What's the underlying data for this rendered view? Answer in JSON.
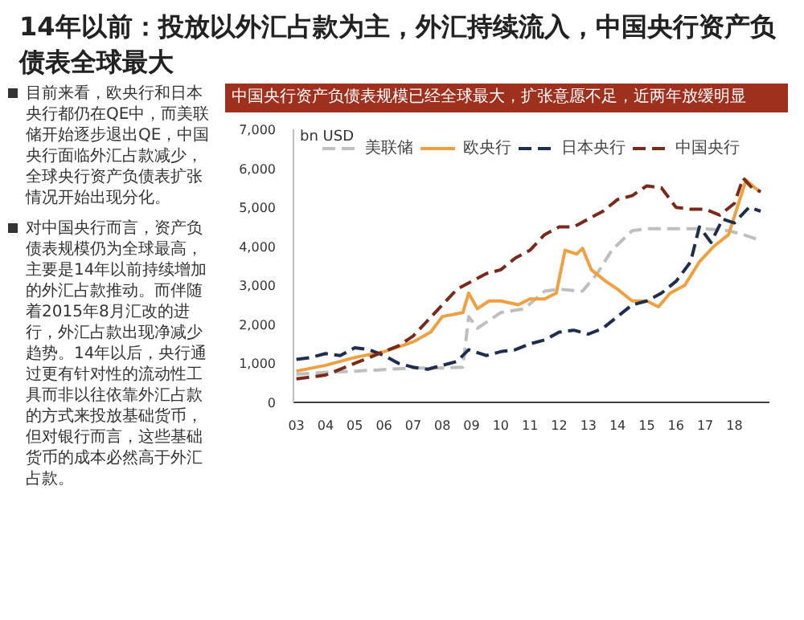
{
  "chart_data": {
    "type": "line",
    "title": "14年以前：投放以外汇占款为主，外汇持续流入，中国央行资产负债表全球最大",
    "subtitle": "中国央行资产负债表规模已经全球最大，扩张意愿不足，近两年放缓明显",
    "ylabel": "bn USD",
    "annotations": [
      "目前来看，欧央行和日本央行都仍在QE中，而美联储开始逐步退出QE，中国央行面临外汇占款减少，全球央行资产负债表扩张情况开始出现分化。",
      "对中国央行而言，资产负债表规模仍为全球最高，主要是14年以前持续增加的外汇占款推动。而伴随着2015年8月汇改的进行，外汇占款出现净减少趋势。14年以后，央行通过更有针对性的流动性工具而非以往依靠外汇占款的方式来投放基础货币，但对银行而言，这些基础货币的成本必然高于外汇占款。"
    ],
    "xlim": [
      2002.9,
      2019.2
    ],
    "xticks": [
      {
        "value": 2003,
        "label": "03"
      },
      {
        "value": 2004,
        "label": "04"
      },
      {
        "value": 2005,
        "label": "05"
      },
      {
        "value": 2006,
        "label": "06"
      },
      {
        "value": 2007,
        "label": "07"
      },
      {
        "value": 2008,
        "label": "08"
      },
      {
        "value": 2009,
        "label": "09"
      },
      {
        "value": 2010,
        "label": "10"
      },
      {
        "value": 2011,
        "label": "11"
      },
      {
        "value": 2012,
        "label": "12"
      },
      {
        "value": 2013,
        "label": "13"
      },
      {
        "value": 2014,
        "label": "14"
      },
      {
        "value": 2015,
        "label": "15"
      },
      {
        "value": 2016,
        "label": "16"
      },
      {
        "value": 2017,
        "label": "17"
      },
      {
        "value": 2018,
        "label": "18"
      }
    ],
    "ylim": [
      0,
      7000
    ],
    "yticks": [
      0,
      {
        "value": 1000,
        "label": "1,000"
      },
      {
        "value": 2000,
        "label": "2,000"
      },
      {
        "value": 3000,
        "label": "3,000"
      },
      {
        "value": 4000,
        "label": "4,000"
      },
      {
        "value": 5000,
        "label": "5,000"
      },
      {
        "value": 6000,
        "label": "6,000"
      },
      {
        "value": 7000,
        "label": "7,000"
      }
    ],
    "grid": false,
    "legend": "top",
    "series": [
      {
        "name": "美联储",
        "color": "#bfbfbf",
        "line_style": "dashed",
        "x": [
          2003,
          2004,
          2005,
          2006,
          2007,
          2008,
          2008.7,
          2008.9,
          2009.2,
          2009.6,
          2010,
          2010.8,
          2011.5,
          2012,
          2012.8,
          2013.3,
          2013.8,
          2014.5,
          2015,
          2016,
          2017,
          2017.8,
          2018.3,
          2018.9
        ],
        "values": [
          720,
          770,
          800,
          840,
          880,
          880,
          900,
          2200,
          1900,
          2100,
          2300,
          2400,
          2850,
          2900,
          2850,
          3300,
          3900,
          4400,
          4450,
          4450,
          4450,
          4400,
          4300,
          4150
        ]
      },
      {
        "name": "欧央行",
        "color": "#f0a040",
        "line_style": "solid",
        "x": [
          2003,
          2004,
          2005,
          2006,
          2007,
          2007.6,
          2008,
          2008.7,
          2008.9,
          2009.2,
          2009.6,
          2010,
          2010.6,
          2011,
          2011.5,
          2011.9,
          2012.2,
          2012.6,
          2012.8,
          2013.1,
          2013.6,
          2014,
          2014.5,
          2015,
          2015.4,
          2015.8,
          2016.3,
          2016.8,
          2017.3,
          2017.8,
          2018.1,
          2018.4,
          2018.7,
          2018.9
        ],
        "values": [
          800,
          950,
          1150,
          1300,
          1550,
          1800,
          2200,
          2300,
          2800,
          2400,
          2600,
          2600,
          2500,
          2650,
          2650,
          2800,
          3900,
          3800,
          3950,
          3400,
          3100,
          2900,
          2600,
          2600,
          2450,
          2800,
          3000,
          3600,
          4000,
          4300,
          5000,
          5700,
          5500,
          5400
        ]
      },
      {
        "name": "日本央行",
        "color": "#1f2d4e",
        "line_style": "dashed",
        "x": [
          2003,
          2003.5,
          2004,
          2004.5,
          2005,
          2005.5,
          2006,
          2006.5,
          2007,
          2007.5,
          2008,
          2008.5,
          2008.9,
          2009.5,
          2010,
          2010.5,
          2011,
          2011.5,
          2012,
          2012.5,
          2013,
          2013.5,
          2014,
          2014.5,
          2015,
          2015.5,
          2016,
          2016.5,
          2016.8,
          2017.2,
          2017.6,
          2018,
          2018.5,
          2018.9
        ],
        "values": [
          1100,
          1150,
          1250,
          1200,
          1400,
          1350,
          1200,
          1000,
          900,
          850,
          950,
          1050,
          1350,
          1200,
          1300,
          1350,
          1500,
          1600,
          1800,
          1850,
          1750,
          1900,
          2200,
          2500,
          2600,
          2800,
          3100,
          3600,
          4500,
          4100,
          4700,
          4600,
          5000,
          4900
        ]
      },
      {
        "name": "中国央行",
        "color": "#7b2a1a",
        "line_style": "dashed",
        "x": [
          2003,
          2004,
          2005,
          2005.5,
          2006,
          2006.5,
          2007,
          2007.5,
          2008,
          2008.5,
          2009,
          2009.5,
          2010,
          2010.5,
          2011,
          2011.5,
          2012,
          2012.5,
          2013,
          2013.5,
          2014,
          2014.5,
          2015,
          2015.5,
          2016,
          2016.5,
          2017,
          2017.5,
          2018,
          2018.3,
          2018.6,
          2018.9
        ],
        "values": [
          600,
          700,
          1000,
          1150,
          1300,
          1450,
          1700,
          2100,
          2500,
          2900,
          3100,
          3300,
          3400,
          3700,
          3900,
          4300,
          4500,
          4500,
          4700,
          4900,
          5200,
          5300,
          5550,
          5500,
          5000,
          4950,
          4950,
          4800,
          5100,
          5750,
          5500,
          5400
        ]
      }
    ]
  }
}
